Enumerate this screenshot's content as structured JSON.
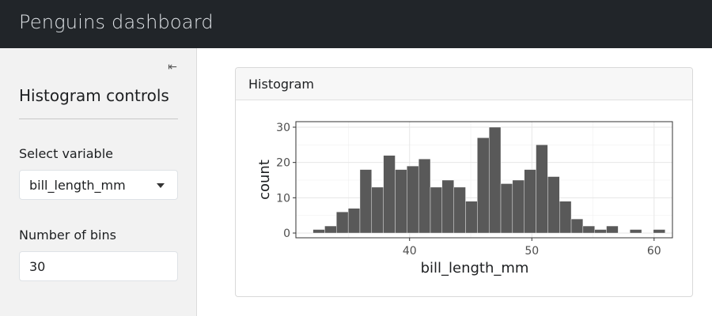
{
  "navbar": {
    "title": "Penguins dashboard"
  },
  "sidebar": {
    "title": "Histogram controls",
    "toggle_icon": "collapse-sidebar-icon",
    "variable_label": "Select variable",
    "variable_value": "bill_length_mm",
    "bins_label": "Number of bins",
    "bins_value": "30"
  },
  "card": {
    "title": "Histogram"
  },
  "colors": {
    "navbar_bg": "#212529",
    "bar_fill": "#595959",
    "panel_border": "#333333"
  },
  "chart_data": {
    "type": "bar",
    "title": "",
    "xlabel": "bill_length_mm",
    "ylabel": "count",
    "x_ticks": [
      40,
      50,
      60
    ],
    "y_ticks": [
      0,
      10,
      20,
      30
    ],
    "xlim": [
      30.7,
      61.5
    ],
    "ylim": [
      0,
      30
    ],
    "grid": true,
    "bin_start": 32.1,
    "bin_width": 0.96,
    "values": [
      1,
      2,
      6,
      7,
      18,
      13,
      22,
      18,
      19,
      21,
      13,
      15,
      13,
      9,
      27,
      30,
      14,
      15,
      18,
      25,
      16,
      9,
      4,
      2,
      1,
      2,
      0,
      1,
      0,
      1
    ]
  }
}
